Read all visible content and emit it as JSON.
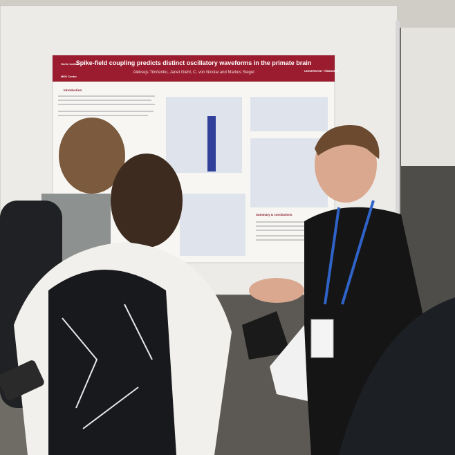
{
  "poster": {
    "title": "Spike-field coupling predicts distinct oscillatory waveforms in the primate brain",
    "authors": "Aleksejs Timčenko, Janet Giehl, C. von Nicolai and Markus Siegel",
    "logos": [
      "Hertie Institut",
      "MEG Center",
      "UNIVERSITÄT TÜBINGEN"
    ],
    "sections": [
      "Introduction",
      "Summary & conclusions"
    ]
  }
}
